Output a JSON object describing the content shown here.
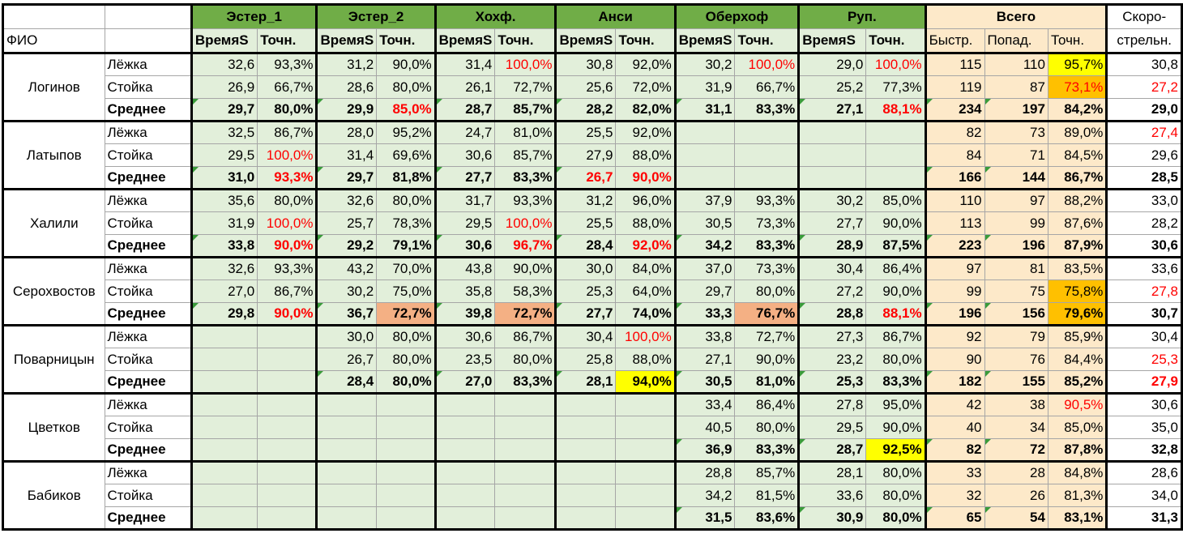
{
  "header": {
    "fio": "ФИО",
    "groups": [
      "Эстер_1",
      "Эстер_2",
      "Хохф.",
      "Анси",
      "Оберхоф",
      "Руп."
    ],
    "total": "Всего",
    "speed1": "Скоро-",
    "speed2": "стрельн.",
    "sub_time": [
      "ВремяS",
      "ВремяS",
      "ВремяS",
      "ВремяS",
      "ВремяS",
      "ВремяS"
    ],
    "sub_acc": "Точн.",
    "total_sub": [
      "Быстр.",
      "Попад.",
      "Точн."
    ]
  },
  "athletes": [
    {
      "name": "Логинов",
      "rows": [
        {
          "label": "Лёжка",
          "vals": [
            "32,6",
            "93,3%",
            "31,2",
            "90,0%",
            "31,4",
            "100,0%",
            "30,8",
            "92,0%",
            "30,2",
            "100,0%",
            "29,0",
            "100,0%"
          ],
          "tot": [
            "115",
            "110",
            "95,7%"
          ],
          "speed": "30,8"
        },
        {
          "label": "Стойка",
          "vals": [
            "26,9",
            "66,7%",
            "28,6",
            "80,0%",
            "26,1",
            "72,7%",
            "25,6",
            "72,0%",
            "31,9",
            "66,7%",
            "25,2",
            "77,3%"
          ],
          "tot": [
            "119",
            "87",
            "73,1%"
          ],
          "speed": "27,2"
        },
        {
          "label": "Среднее",
          "vals": [
            "29,7",
            "80,0%",
            "29,9",
            "85,0%",
            "28,7",
            "85,7%",
            "28,2",
            "82,0%",
            "31,1",
            "83,3%",
            "27,1",
            "88,1%"
          ],
          "tot": [
            "234",
            "197",
            "84,2%"
          ],
          "speed": "29,0"
        }
      ]
    },
    {
      "name": "Латыпов",
      "rows": [
        {
          "label": "Лёжка",
          "vals": [
            "32,5",
            "86,7%",
            "28,0",
            "95,2%",
            "24,7",
            "81,0%",
            "25,5",
            "92,0%",
            "",
            "",
            "",
            ""
          ],
          "tot": [
            "82",
            "73",
            "89,0%"
          ],
          "speed": "27,4"
        },
        {
          "label": "Стойка",
          "vals": [
            "29,5",
            "100,0%",
            "31,4",
            "69,6%",
            "30,6",
            "85,7%",
            "27,9",
            "88,0%",
            "",
            "",
            "",
            ""
          ],
          "tot": [
            "84",
            "71",
            "84,5%"
          ],
          "speed": "29,6"
        },
        {
          "label": "Среднее",
          "vals": [
            "31,0",
            "93,3%",
            "29,7",
            "81,8%",
            "27,7",
            "83,3%",
            "26,7",
            "90,0%",
            "",
            "",
            "",
            ""
          ],
          "tot": [
            "166",
            "144",
            "86,7%"
          ],
          "speed": "28,5"
        }
      ]
    },
    {
      "name": "Халили",
      "rows": [
        {
          "label": "Лёжка",
          "vals": [
            "35,6",
            "80,0%",
            "32,6",
            "80,0%",
            "31,7",
            "93,3%",
            "31,2",
            "96,0%",
            "37,9",
            "93,3%",
            "30,2",
            "85,0%"
          ],
          "tot": [
            "110",
            "97",
            "88,2%"
          ],
          "speed": "33,0"
        },
        {
          "label": "Стойка",
          "vals": [
            "31,9",
            "100,0%",
            "25,7",
            "78,3%",
            "29,5",
            "100,0%",
            "25,5",
            "88,0%",
            "30,5",
            "73,3%",
            "27,7",
            "90,0%"
          ],
          "tot": [
            "113",
            "99",
            "87,6%"
          ],
          "speed": "28,2"
        },
        {
          "label": "Среднее",
          "vals": [
            "33,8",
            "90,0%",
            "29,2",
            "79,1%",
            "30,6",
            "96,7%",
            "28,4",
            "92,0%",
            "34,2",
            "83,3%",
            "28,9",
            "87,5%"
          ],
          "tot": [
            "223",
            "196",
            "87,9%"
          ],
          "speed": "30,6"
        }
      ]
    },
    {
      "name": "Серохвостов",
      "rows": [
        {
          "label": "Лёжка",
          "vals": [
            "32,6",
            "93,3%",
            "43,2",
            "70,0%",
            "43,8",
            "90,0%",
            "30,0",
            "84,0%",
            "37,0",
            "73,3%",
            "30,4",
            "86,4%"
          ],
          "tot": [
            "97",
            "81",
            "83,5%"
          ],
          "speed": "33,6"
        },
        {
          "label": "Стойка",
          "vals": [
            "27,0",
            "86,7%",
            "30,2",
            "75,0%",
            "35,8",
            "58,3%",
            "25,3",
            "64,0%",
            "29,7",
            "80,0%",
            "27,2",
            "90,0%"
          ],
          "tot": [
            "99",
            "75",
            "75,8%"
          ],
          "speed": "27,8"
        },
        {
          "label": "Среднее",
          "vals": [
            "29,8",
            "90,0%",
            "36,7",
            "72,7%",
            "39,8",
            "72,7%",
            "27,7",
            "74,0%",
            "33,3",
            "76,7%",
            "28,8",
            "88,1%"
          ],
          "tot": [
            "196",
            "156",
            "79,6%"
          ],
          "speed": "30,7"
        }
      ]
    },
    {
      "name": "Поварницын",
      "rows": [
        {
          "label": "Лёжка",
          "vals": [
            "",
            "",
            "30,0",
            "80,0%",
            "30,6",
            "86,7%",
            "30,4",
            "100,0%",
            "33,8",
            "72,7%",
            "27,3",
            "86,7%"
          ],
          "tot": [
            "92",
            "79",
            "85,9%"
          ],
          "speed": "30,4"
        },
        {
          "label": "Стойка",
          "vals": [
            "",
            "",
            "26,7",
            "80,0%",
            "23,5",
            "80,0%",
            "25,8",
            "88,0%",
            "27,1",
            "90,0%",
            "23,2",
            "80,0%"
          ],
          "tot": [
            "90",
            "76",
            "84,4%"
          ],
          "speed": "25,3"
        },
        {
          "label": "Среднее",
          "vals": [
            "",
            "",
            "28,4",
            "80,0%",
            "27,0",
            "83,3%",
            "28,1",
            "94,0%",
            "30,5",
            "81,0%",
            "25,3",
            "83,3%"
          ],
          "tot": [
            "182",
            "155",
            "85,2%"
          ],
          "speed": "27,9"
        }
      ]
    },
    {
      "name": "Цветков",
      "rows": [
        {
          "label": "Лёжка",
          "vals": [
            "",
            "",
            "",
            "",
            "",
            "",
            "",
            "",
            "33,4",
            "86,4%",
            "27,8",
            "95,0%"
          ],
          "tot": [
            "42",
            "38",
            "90,5%"
          ],
          "speed": "30,6"
        },
        {
          "label": "Стойка",
          "vals": [
            "",
            "",
            "",
            "",
            "",
            "",
            "",
            "",
            "40,5",
            "80,0%",
            "29,5",
            "90,0%"
          ],
          "tot": [
            "40",
            "34",
            "85,0%"
          ],
          "speed": "35,0"
        },
        {
          "label": "Среднее",
          "vals": [
            "",
            "",
            "",
            "",
            "",
            "",
            "",
            "",
            "36,9",
            "83,3%",
            "28,7",
            "92,5%"
          ],
          "tot": [
            "82",
            "72",
            "87,8%"
          ],
          "speed": "32,8"
        }
      ]
    },
    {
      "name": "Бабиков",
      "rows": [
        {
          "label": "Лёжка",
          "vals": [
            "",
            "",
            "",
            "",
            "",
            "",
            "",
            "",
            "28,8",
            "85,7%",
            "28,1",
            "80,0%"
          ],
          "tot": [
            "33",
            "28",
            "84,8%"
          ],
          "speed": "28,6"
        },
        {
          "label": "Стойка",
          "vals": [
            "",
            "",
            "",
            "",
            "",
            "",
            "",
            "",
            "34,2",
            "81,5%",
            "33,6",
            "80,0%"
          ],
          "tot": [
            "32",
            "26",
            "81,3%"
          ],
          "speed": "34,0"
        },
        {
          "label": "Среднее",
          "vals": [
            "",
            "",
            "",
            "",
            "",
            "",
            "",
            "",
            "31,5",
            "83,6%",
            "30,9",
            "80,0%"
          ],
          "tot": [
            "65",
            "54",
            "83,1%"
          ],
          "speed": "31,3"
        }
      ]
    }
  ],
  "styles": {
    "red": [
      "0.0.5",
      "0.0.9",
      "0.0.11",
      "0.1.tot2",
      "0.1.speed",
      "0.2.3",
      "0.2.11",
      "1.0.speed",
      "1.1.1",
      "1.2.1",
      "1.2.6",
      "1.2.7",
      "2.1.1",
      "2.1.5",
      "2.2.1",
      "2.2.5",
      "2.2.7",
      "3.1.speed",
      "3.2.1",
      "3.2.11",
      "4.0.7",
      "4.1.speed",
      "4.2.speed",
      "5.0.tot2"
    ],
    "yellow": [
      "0.0.tot2",
      "4.2.7",
      "5.2.11"
    ],
    "orange": [
      "3.2.3",
      "3.2.5",
      "3.2.9"
    ],
    "amber": [
      "0.1.tot2",
      "3.1.tot2",
      "3.2.tot2"
    ]
  },
  "colors": {
    "group_header": "#70ad47",
    "data_green": "#e2efda",
    "total_peach": "#fde9c9",
    "highlight_yellow": "#ffff00",
    "highlight_orange": "#f4b084",
    "highlight_amber": "#ffc000",
    "alert_red": "#ff0000"
  }
}
